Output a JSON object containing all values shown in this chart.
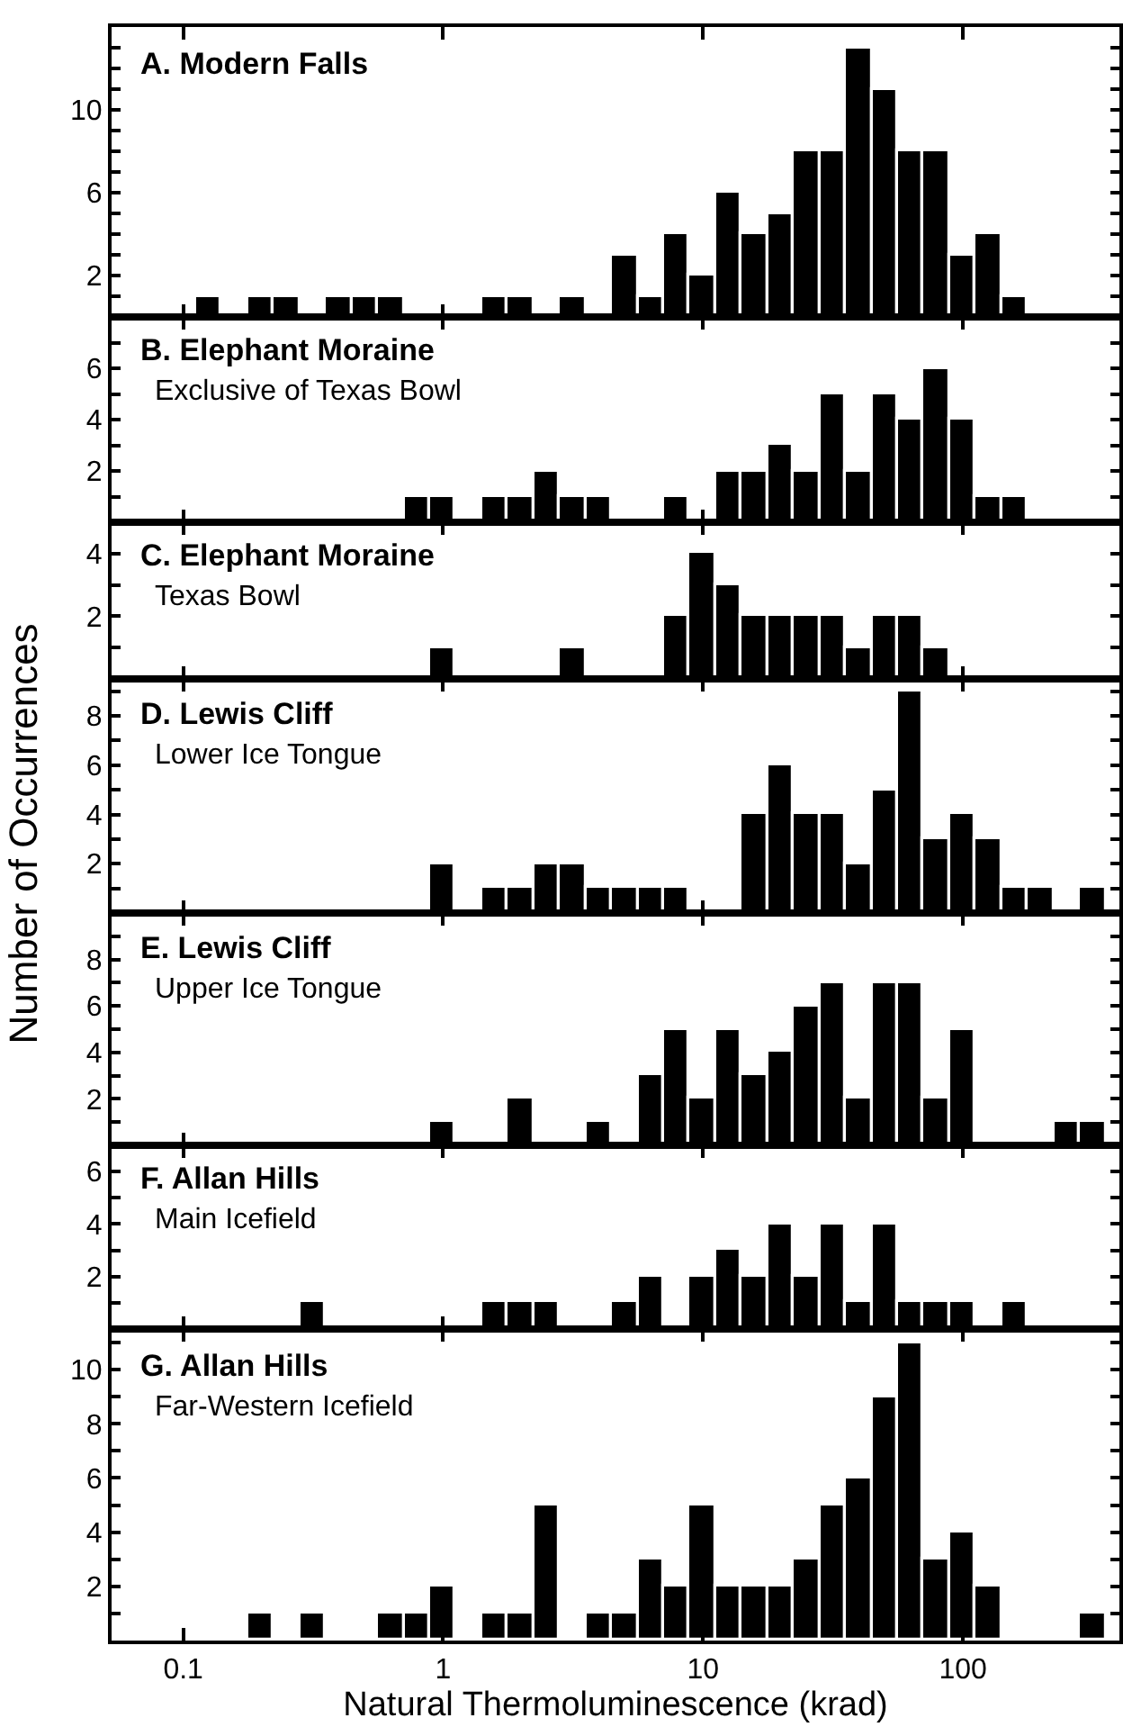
{
  "chart_data": [
    {
      "type": "histogram",
      "title": "A. Modern Falls",
      "color": "#000000",
      "tick_labels": "y",
      "xlim": [
        0.053,
        400
      ],
      "xticks": [
        {
          "value": 0.1,
          "label": null
        },
        {
          "value": 1,
          "label": null
        },
        {
          "value": 10,
          "label": null
        },
        {
          "value": 100,
          "label": null
        }
      ],
      "log": "x",
      "ylim": [
        0,
        14
      ],
      "yticks": [
        {
          "value": 1,
          "label": null
        },
        2,
        {
          "value": 3,
          "label": null
        },
        {
          "value": 4,
          "label": null
        },
        {
          "value": 5,
          "label": null
        },
        6,
        {
          "value": 7,
          "label": null
        },
        {
          "value": 8,
          "label": null
        },
        {
          "value": 9,
          "label": null
        },
        10,
        {
          "value": 11,
          "label": null
        },
        {
          "value": 12,
          "label": null
        },
        {
          "value": 13,
          "label": null
        }
      ],
      "bins": [
        0.112,
        0.141,
        0.178,
        0.224,
        0.282,
        0.355,
        0.447,
        0.562,
        0.708,
        0.891,
        1.12,
        1.41,
        1.78,
        2.24,
        2.82,
        3.55,
        4.47,
        5.62,
        7.08,
        8.91,
        11.2,
        14.1,
        17.8,
        22.4,
        28.2,
        35.5,
        44.7,
        56.2,
        70.8,
        89.1,
        112,
        141,
        178,
        224,
        282,
        355
      ],
      "values": [
        1,
        0,
        1,
        1,
        0,
        1,
        1,
        1,
        0,
        0,
        0,
        1,
        1,
        0,
        1,
        0,
        3,
        1,
        4,
        2,
        6,
        4,
        5,
        8,
        8,
        13,
        11,
        8,
        8,
        3,
        4,
        1,
        0,
        0,
        0
      ]
    },
    {
      "type": "histogram",
      "title": "B. Elephant Moraine",
      "subtitle": "Exclusive of Texas Bowl",
      "color": "#000000",
      "tick_labels": "y",
      "xlim": [
        0.053,
        400
      ],
      "xticks": [
        {
          "value": 0.1,
          "label": null
        },
        {
          "value": 1,
          "label": null
        },
        {
          "value": 10,
          "label": null
        },
        {
          "value": 100,
          "label": null
        }
      ],
      "log": "x",
      "ylim": [
        0,
        8
      ],
      "yticks": [
        {
          "value": 1,
          "label": null
        },
        2,
        {
          "value": 3,
          "label": null
        },
        4,
        {
          "value": 5,
          "label": null
        },
        6,
        {
          "value": 7,
          "label": null
        }
      ],
      "bins": [
        0.112,
        0.141,
        0.178,
        0.224,
        0.282,
        0.355,
        0.447,
        0.562,
        0.708,
        0.891,
        1.12,
        1.41,
        1.78,
        2.24,
        2.82,
        3.55,
        4.47,
        5.62,
        7.08,
        8.91,
        11.2,
        14.1,
        17.8,
        22.4,
        28.2,
        35.5,
        44.7,
        56.2,
        70.8,
        89.1,
        112,
        141,
        178,
        224,
        282,
        355
      ],
      "values": [
        0,
        0,
        0,
        0,
        0,
        0,
        0,
        0,
        1,
        1,
        0,
        1,
        1,
        2,
        1,
        1,
        0,
        0,
        1,
        0,
        2,
        2,
        3,
        2,
        5,
        2,
        5,
        4,
        6,
        4,
        1,
        1,
        0,
        0,
        0
      ]
    },
    {
      "type": "histogram",
      "title": "C. Elephant Moraine",
      "subtitle": "Texas Bowl",
      "color": "#000000",
      "tick_labels": "y",
      "xlim": [
        0.053,
        400
      ],
      "xticks": [
        {
          "value": 0.1,
          "label": null
        },
        {
          "value": 1,
          "label": null
        },
        {
          "value": 10,
          "label": null
        },
        {
          "value": 100,
          "label": null
        }
      ],
      "log": "x",
      "ylim": [
        0,
        5
      ],
      "yticks": [
        {
          "value": 1,
          "label": null
        },
        2,
        {
          "value": 3,
          "label": null
        },
        4
      ],
      "bins": [
        0.112,
        0.141,
        0.178,
        0.224,
        0.282,
        0.355,
        0.447,
        0.562,
        0.708,
        0.891,
        1.12,
        1.41,
        1.78,
        2.24,
        2.82,
        3.55,
        4.47,
        5.62,
        7.08,
        8.91,
        11.2,
        14.1,
        17.8,
        22.4,
        28.2,
        35.5,
        44.7,
        56.2,
        70.8,
        89.1,
        112,
        141,
        178,
        224,
        282,
        355
      ],
      "values": [
        0,
        0,
        0,
        0,
        0,
        0,
        0,
        0,
        0,
        1,
        0,
        0,
        0,
        0,
        1,
        0,
        0,
        0,
        2,
        4,
        3,
        2,
        2,
        2,
        2,
        1,
        2,
        2,
        1,
        0,
        0,
        0,
        0,
        0,
        0
      ]
    },
    {
      "type": "histogram",
      "title": "D. Lewis Cliff",
      "subtitle": "Lower Ice Tongue",
      "ylabel": "Number of Occurrences",
      "color": "#000000",
      "tick_labels": "y",
      "xlim": [
        0.053,
        400
      ],
      "xticks": [
        {
          "value": 0.1,
          "label": null
        },
        {
          "value": 1,
          "label": null
        },
        {
          "value": 10,
          "label": null
        },
        {
          "value": 100,
          "label": null
        }
      ],
      "log": "x",
      "ylim": [
        0,
        9.5
      ],
      "yticks": [
        {
          "value": 1,
          "label": null
        },
        2,
        {
          "value": 3,
          "label": null
        },
        4,
        {
          "value": 5,
          "label": null
        },
        6,
        {
          "value": 7,
          "label": null
        },
        8,
        {
          "value": 9,
          "label": null
        }
      ],
      "bins": [
        0.112,
        0.141,
        0.178,
        0.224,
        0.282,
        0.355,
        0.447,
        0.562,
        0.708,
        0.891,
        1.12,
        1.41,
        1.78,
        2.24,
        2.82,
        3.55,
        4.47,
        5.62,
        7.08,
        8.91,
        11.2,
        14.1,
        17.8,
        22.4,
        28.2,
        35.5,
        44.7,
        56.2,
        70.8,
        89.1,
        112,
        141,
        178,
        224,
        282,
        355
      ],
      "values": [
        0,
        0,
        0,
        0,
        0,
        0,
        0,
        0,
        0,
        2,
        0,
        1,
        1,
        2,
        2,
        1,
        1,
        1,
        1,
        0,
        0,
        4,
        6,
        4,
        4,
        2,
        5,
        9,
        3,
        4,
        3,
        1,
        1,
        0,
        1
      ]
    },
    {
      "type": "histogram",
      "title": "E. Lewis Cliff",
      "subtitle": "Upper Ice Tongue",
      "color": "#000000",
      "tick_labels": "y",
      "xlim": [
        0.053,
        400
      ],
      "xticks": [
        {
          "value": 0.1,
          "label": null
        },
        {
          "value": 1,
          "label": null
        },
        {
          "value": 10,
          "label": null
        },
        {
          "value": 100,
          "label": null
        }
      ],
      "log": "x",
      "ylim": [
        0,
        10
      ],
      "yticks": [
        {
          "value": 1,
          "label": null
        },
        2,
        {
          "value": 3,
          "label": null
        },
        4,
        {
          "value": 5,
          "label": null
        },
        6,
        {
          "value": 7,
          "label": null
        },
        8,
        {
          "value": 9,
          "label": null
        }
      ],
      "bins": [
        0.112,
        0.141,
        0.178,
        0.224,
        0.282,
        0.355,
        0.447,
        0.562,
        0.708,
        0.891,
        1.12,
        1.41,
        1.78,
        2.24,
        2.82,
        3.55,
        4.47,
        5.62,
        7.08,
        8.91,
        11.2,
        14.1,
        17.8,
        22.4,
        28.2,
        35.5,
        44.7,
        56.2,
        70.8,
        89.1,
        112,
        141,
        178,
        224,
        282,
        355
      ],
      "values": [
        0,
        0,
        0,
        0,
        0,
        0,
        0,
        0,
        0,
        1,
        0,
        0,
        2,
        0,
        0,
        1,
        0,
        3,
        5,
        2,
        5,
        3,
        4,
        6,
        7,
        2,
        7,
        7,
        2,
        5,
        0,
        0,
        0,
        1,
        1
      ]
    },
    {
      "type": "histogram",
      "title": "F. Allan Hills",
      "subtitle": "Main Icefield",
      "color": "#000000",
      "tick_labels": "y",
      "xlim": [
        0.053,
        400
      ],
      "xticks": [
        {
          "value": 0.1,
          "label": null
        },
        {
          "value": 1,
          "label": null
        },
        {
          "value": 10,
          "label": null
        },
        {
          "value": 100,
          "label": null
        }
      ],
      "log": "x",
      "ylim": [
        0,
        7
      ],
      "yticks": [
        {
          "value": 1,
          "label": null
        },
        2,
        {
          "value": 3,
          "label": null
        },
        4,
        {
          "value": 5,
          "label": null
        },
        6
      ],
      "bins": [
        0.112,
        0.141,
        0.178,
        0.224,
        0.282,
        0.355,
        0.447,
        0.562,
        0.708,
        0.891,
        1.12,
        1.41,
        1.78,
        2.24,
        2.82,
        3.55,
        4.47,
        5.62,
        7.08,
        8.91,
        11.2,
        14.1,
        17.8,
        22.4,
        28.2,
        35.5,
        44.7,
        56.2,
        70.8,
        89.1,
        112,
        141,
        178,
        224,
        282,
        355
      ],
      "values": [
        0,
        0,
        0,
        0,
        1,
        0,
        0,
        0,
        0,
        0,
        0,
        1,
        1,
        1,
        0,
        0,
        1,
        2,
        0,
        2,
        3,
        2,
        4,
        2,
        4,
        1,
        4,
        1,
        1,
        1,
        0,
        1,
        0,
        0,
        0
      ]
    },
    {
      "type": "histogram",
      "title": "G. Allan Hills",
      "subtitle": "Far-Western Icefield",
      "xlabel": "Natural Thermoluminescence (krad)",
      "color": "#000000",
      "xlim": [
        0.053,
        400
      ],
      "xticks": [
        0.1,
        1,
        10,
        100
      ],
      "log": "x",
      "ylim": [
        0,
        11.5
      ],
      "yticks": [
        {
          "value": 1,
          "label": null
        },
        2,
        {
          "value": 3,
          "label": null
        },
        4,
        {
          "value": 5,
          "label": null
        },
        6,
        {
          "value": 7,
          "label": null
        },
        8,
        {
          "value": 9,
          "label": null
        },
        10,
        {
          "value": 11,
          "label": null
        }
      ],
      "bins": [
        0.112,
        0.141,
        0.178,
        0.224,
        0.282,
        0.355,
        0.447,
        0.562,
        0.708,
        0.891,
        1.12,
        1.41,
        1.78,
        2.24,
        2.82,
        3.55,
        4.47,
        5.62,
        7.08,
        8.91,
        11.2,
        14.1,
        17.8,
        22.4,
        28.2,
        35.5,
        44.7,
        56.2,
        70.8,
        89.1,
        112,
        141,
        178,
        224,
        282,
        355
      ],
      "values": [
        0,
        0,
        1,
        0,
        1,
        0,
        0,
        1,
        1,
        2,
        0,
        1,
        1,
        5,
        0,
        1,
        1,
        3,
        2,
        5,
        2,
        2,
        2,
        3,
        5,
        6,
        9,
        11,
        3,
        4,
        2,
        0,
        0,
        0,
        1
      ]
    }
  ]
}
